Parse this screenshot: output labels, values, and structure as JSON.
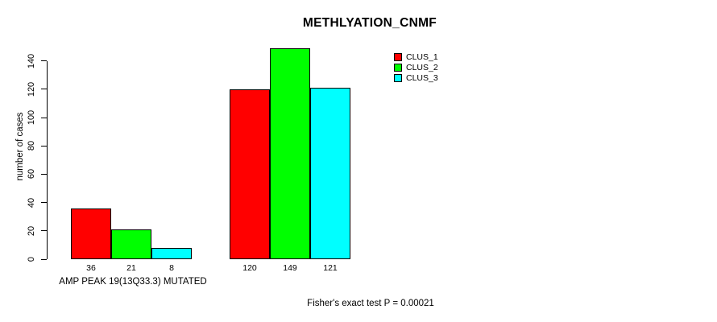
{
  "chart_data": {
    "type": "bar",
    "title": "METHLYATION_CNMF",
    "ylabel": "number of cases",
    "xlabel": "AMP PEAK 19(13Q33.3) MUTATED",
    "annotation": "Fisher's exact test P = 0.00021",
    "yticks": [
      0,
      20,
      40,
      60,
      80,
      100,
      120,
      140
    ],
    "ylim": [
      0,
      140
    ],
    "grid": false,
    "legend_position": "top-right",
    "bar_border_color": "#000000",
    "groups": [
      "group-1",
      "group-2"
    ],
    "series": [
      {
        "name": "CLUS_1",
        "color": "#FF0000",
        "values": [
          36,
          120
        ]
      },
      {
        "name": "CLUS_2",
        "color": "#00FF00",
        "values": [
          21,
          149
        ]
      },
      {
        "name": "CLUS_3",
        "color": "#00FFFF",
        "values": [
          8,
          121
        ]
      }
    ]
  },
  "colors": {
    "background": "#FFFFFF",
    "text": "#000000",
    "axis": "#000000"
  }
}
